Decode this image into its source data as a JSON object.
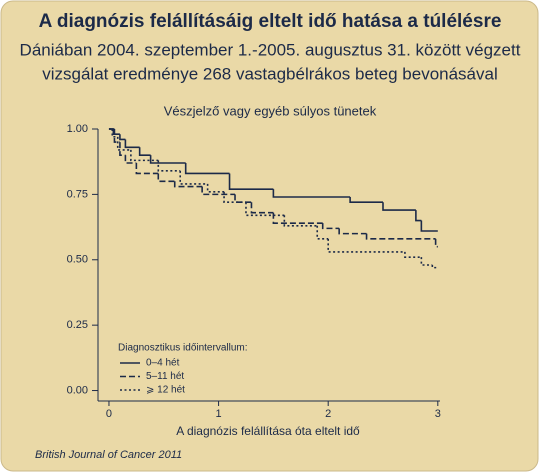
{
  "chart_data": {
    "type": "line",
    "drawstyle": "steps-post",
    "title": "A diagnózis felállításáig eltelt idő hatása a túlélésre",
    "subtitle": [
      "Dániában 2004. szeptember 1.-2005. augusztus 31. között végzett",
      "vizsgálat eredménye 268 vastagbélrákos beteg bevonásával"
    ],
    "plot_title": "Vészjelző vagy egyéb súlyos tünetek",
    "xlabel": "A diagnózis felállítása óta eltelt idő",
    "legend_title": "Diagnosztikus időintervallum:",
    "source": "British Journal of Cancer 2011",
    "xlim": [
      -0.1,
      3.02
    ],
    "ylim": [
      -0.04,
      1.0
    ],
    "xticks": [
      0,
      1,
      2,
      3
    ],
    "yticks": [
      {
        "value": 0,
        "label": "0.00"
      },
      {
        "value": 0.25,
        "label": "0.25"
      },
      {
        "value": 0.5,
        "label": "0.50"
      },
      {
        "value": 0.75,
        "label": "0.75"
      },
      {
        "value": 1,
        "label": "1.00"
      }
    ],
    "series": [
      {
        "name": "0–4 hét",
        "color": "#1c2a48",
        "linestyle": "solid",
        "x": [
          0,
          0.04,
          0.1,
          0.15,
          0.28,
          0.38,
          0.7,
          1.1,
          1.5,
          2.2,
          2.5,
          2.8,
          2.85,
          3.0
        ],
        "values": [
          1.0,
          0.98,
          0.96,
          0.93,
          0.9,
          0.87,
          0.83,
          0.77,
          0.74,
          0.72,
          0.69,
          0.65,
          0.61,
          0.61
        ]
      },
      {
        "name": "5–11 hét",
        "color": "#1c2a48",
        "linestyle": "dashed",
        "x": [
          0,
          0.05,
          0.1,
          0.15,
          0.25,
          0.45,
          0.6,
          0.85,
          1.15,
          1.3,
          1.5,
          1.95,
          2.1,
          2.35,
          2.98,
          3.0
        ],
        "values": [
          1.0,
          0.95,
          0.9,
          0.87,
          0.83,
          0.8,
          0.78,
          0.75,
          0.72,
          0.68,
          0.64,
          0.62,
          0.6,
          0.58,
          0.55,
          0.55
        ]
      },
      {
        "name": "⩾ 12 hét",
        "color": "#1c2a48",
        "linestyle": "dotted",
        "x": [
          0,
          0.03,
          0.08,
          0.2,
          0.45,
          0.65,
          0.9,
          1.05,
          1.25,
          1.6,
          1.9,
          2.0,
          2.7,
          2.85,
          2.95,
          3.0
        ],
        "values": [
          1.0,
          0.97,
          0.92,
          0.88,
          0.84,
          0.79,
          0.76,
          0.72,
          0.67,
          0.63,
          0.58,
          0.53,
          0.51,
          0.48,
          0.47,
          0.47
        ]
      }
    ]
  }
}
